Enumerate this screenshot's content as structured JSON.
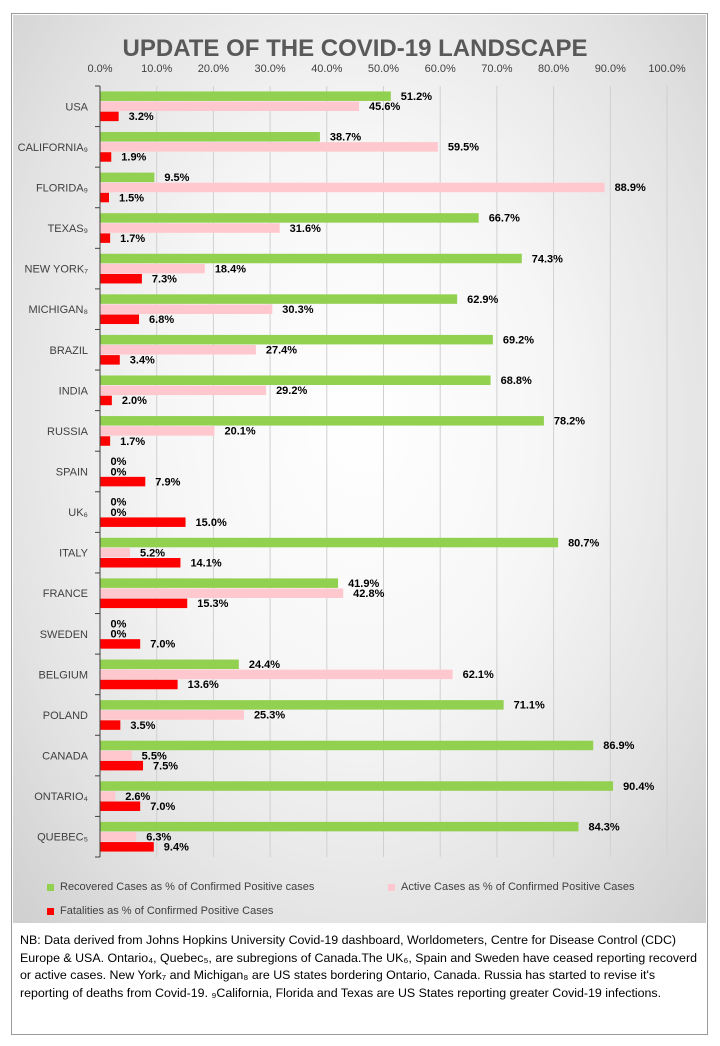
{
  "chart_data": {
    "type": "bar",
    "orientation": "horizontal",
    "title": "UPDATE OF THE COVID-19 LANDSCAPE",
    "xlim": [
      0,
      100
    ],
    "x_ticks": [
      "0.0%",
      "10.0%",
      "20.0%",
      "30.0%",
      "40.0%",
      "50.0%",
      "60.0%",
      "70.0%",
      "80.0%",
      "90.0%",
      "100.0%"
    ],
    "x_tick_values": [
      0,
      10,
      20,
      30,
      40,
      50,
      60,
      70,
      80,
      90,
      100
    ],
    "x_axis_position": "top",
    "gridlines": true,
    "legend_position": "bottom",
    "categories": [
      "USA",
      "CALIFORNIA₉",
      "FLORIDA₉",
      "TEXAS₉",
      "NEW YORK₇",
      "MICHIGAN₈",
      "BRAZIL",
      "INDIA",
      "RUSSIA",
      "SPAIN",
      "UK₆",
      "ITALY",
      "FRANCE",
      "SWEDEN",
      "BELGIUM",
      "POLAND",
      "CANADA",
      "ONTARIO₄",
      "QUEBEC₅"
    ],
    "series": [
      {
        "name": "Recovered Cases as % of Confirmed Positive cases",
        "color": "#92d050",
        "values": [
          51.2,
          38.7,
          9.5,
          66.7,
          74.3,
          62.9,
          69.2,
          68.8,
          78.2,
          0,
          0,
          80.7,
          41.9,
          0,
          24.4,
          71.1,
          86.9,
          90.4,
          84.3
        ],
        "labels": [
          "51.2%",
          "38.7%",
          "9.5%",
          "66.7%",
          "74.3%",
          "62.9%",
          "69.2%",
          "68.8%",
          "78.2%",
          "0%",
          "0%",
          "80.7%",
          "41.9%",
          "0%",
          "24.4%",
          "71.1%",
          "86.9%",
          "90.4%",
          "84.3%"
        ]
      },
      {
        "name": "Active Cases as % of Confirmed Positive  Cases",
        "color": "#ffc7ce",
        "values": [
          45.6,
          59.5,
          88.9,
          31.6,
          18.4,
          30.3,
          27.4,
          29.2,
          20.1,
          0,
          0,
          5.2,
          42.8,
          0,
          62.1,
          25.3,
          5.5,
          2.6,
          6.3
        ],
        "labels": [
          "45.6%",
          "59.5%",
          "88.9%",
          "31.6%",
          "18.4%",
          "30.3%",
          "27.4%",
          "29.2%",
          "20.1%",
          "0%",
          "0%",
          "5.2%",
          "42.8%",
          "0%",
          "62.1%",
          "25.3%",
          "5.5%",
          "2.6%",
          "6.3%"
        ]
      },
      {
        "name": "Fatalities as % of Confirmed Positive Cases",
        "color": "#ff0000",
        "values": [
          3.2,
          1.9,
          1.5,
          1.7,
          7.3,
          6.8,
          3.4,
          2.0,
          1.7,
          7.9,
          15.0,
          14.1,
          15.3,
          7.0,
          13.6,
          3.5,
          7.5,
          7.0,
          9.4
        ],
        "labels": [
          "3.2%",
          "1.9%",
          "1.5%",
          "1.7%",
          "7.3%",
          "6.8%",
          "3.4%",
          "2.0%",
          "1.7%",
          "7.9%",
          "15.0%",
          "14.1%",
          "15.3%",
          "7.0%",
          "13.6%",
          "3.5%",
          "7.5%",
          "7.0%",
          "9.4%"
        ]
      }
    ]
  },
  "footnote": "NB: Data derived from Johns Hopkins University Covid-19 dashboard, Worldometers, Centre for Disease Control (CDC) Europe & USA. Ontario₄, Quebec₅, are subregions of Canada.The UK₆, Spain and Sweden have ceased reporting recoverd or active cases. New York₇ and Michigan₈ are US states bordering Ontario, Canada. Russia has started to revise it's reporting of deaths from Covid-19. ₉California, Florida and Texas are US States reporting greater Covid-19 infections."
}
